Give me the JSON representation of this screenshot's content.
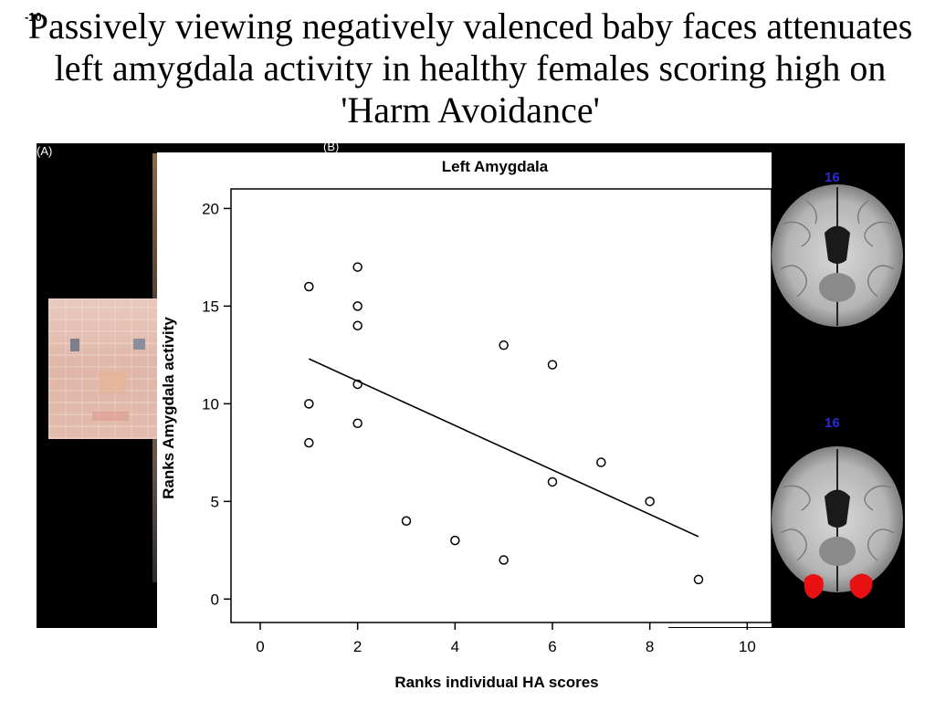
{
  "slide": {
    "number": "-10-",
    "title": "Passively viewing negatively valenced baby faces attenuates left amygdala activity in healthy females scoring high on 'Harm Avoidance'",
    "panel_labels": {
      "a": "(A)",
      "b": "(B)"
    },
    "brain_slices": [
      {
        "number": "16",
        "activation": false
      },
      {
        "number": "16",
        "activation": true
      }
    ]
  },
  "colors": {
    "panel_background": "#000000",
    "activation": "#e81010",
    "slice_number": "#2a2ad8"
  },
  "chart_data": {
    "type": "scatter",
    "title": "Left Amygdala",
    "xlabel": "Ranks individual HA scores",
    "ylabel": "Ranks Amygdala activity",
    "xlim": [
      -0.6,
      10.5
    ],
    "ylim": [
      -1.2,
      21
    ],
    "xticks": [
      0,
      2,
      4,
      6,
      8,
      10
    ],
    "yticks": [
      0,
      5,
      10,
      15,
      20
    ],
    "grid": false,
    "points": [
      [
        1,
        16
      ],
      [
        1,
        10
      ],
      [
        1,
        8
      ],
      [
        2,
        17
      ],
      [
        2,
        15
      ],
      [
        2,
        14
      ],
      [
        2,
        11
      ],
      [
        2,
        9
      ],
      [
        3,
        4
      ],
      [
        4,
        3
      ],
      [
        5,
        13
      ],
      [
        5,
        2
      ],
      [
        6,
        12
      ],
      [
        6,
        6
      ],
      [
        7,
        7
      ],
      [
        8,
        5
      ],
      [
        9,
        1
      ]
    ],
    "fit_line": {
      "x": [
        1,
        9
      ],
      "y": [
        12.3,
        3.2
      ]
    }
  }
}
